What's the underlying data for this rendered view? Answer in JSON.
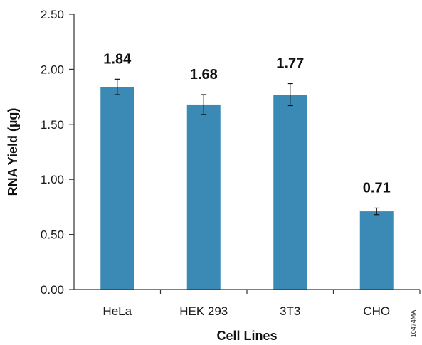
{
  "chart_data": {
    "type": "bar",
    "categories": [
      "HeLa",
      "HEK 293",
      "3T3",
      "CHO"
    ],
    "values": [
      1.84,
      1.68,
      1.77,
      0.71
    ],
    "value_labels": [
      "1.84",
      "1.68",
      "1.77",
      "0.71"
    ],
    "errors": [
      0.07,
      0.09,
      0.1,
      0.03
    ],
    "xlabel": "Cell Lines",
    "ylabel": "RNA Yield (µg)",
    "ylim": [
      0,
      2.5
    ],
    "yticks": [
      0,
      0.5,
      1.0,
      1.5,
      2.0,
      2.5
    ],
    "ytick_labels": [
      "0.00",
      "0.50",
      "1.00",
      "1.50",
      "2.00",
      "2.50"
    ],
    "bar_color": "#3a8ab5",
    "grid": false,
    "legend": "none"
  },
  "figure_code": "10474MA"
}
